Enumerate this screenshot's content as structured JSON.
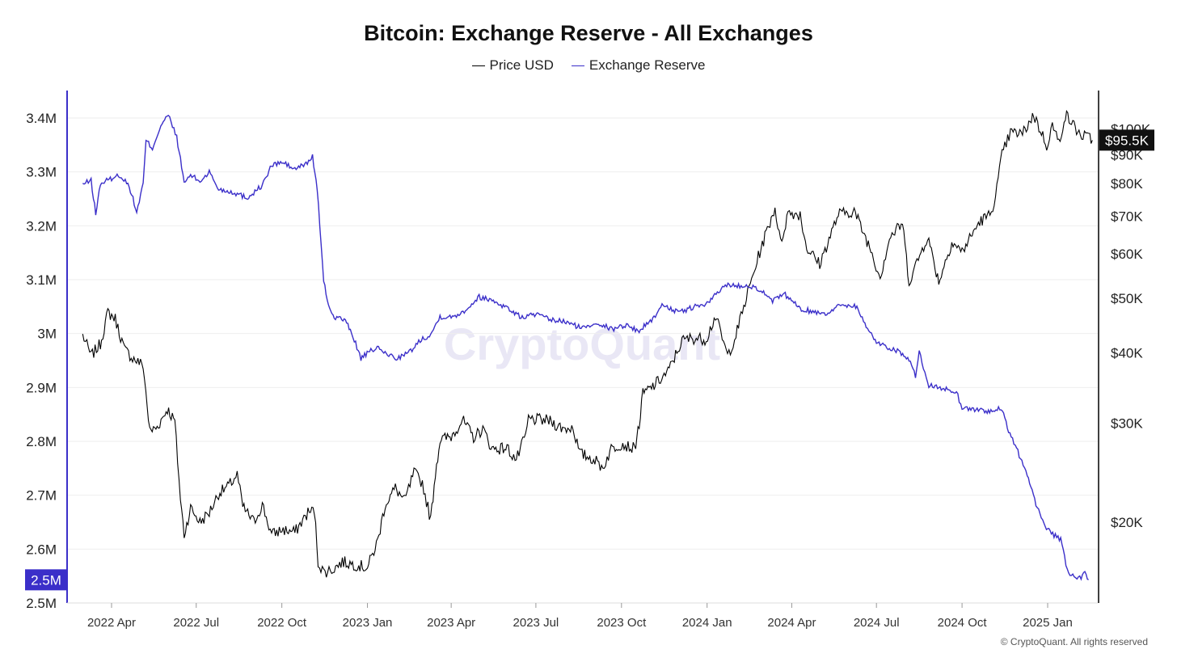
{
  "chart_data": {
    "type": "line",
    "title": "Bitcoin: Exchange Reserve - All Exchanges",
    "series": [
      {
        "name": "Price USD",
        "color": "#000000",
        "axis": "right",
        "points": [
          [
            "2022-03-01",
            43000
          ],
          [
            "2022-03-10",
            39500
          ],
          [
            "2022-03-20",
            41500
          ],
          [
            "2022-03-28",
            47200
          ],
          [
            "2022-04-05",
            46000
          ],
          [
            "2022-04-15",
            40500
          ],
          [
            "2022-04-25",
            39000
          ],
          [
            "2022-05-05",
            38000
          ],
          [
            "2022-05-12",
            29000
          ],
          [
            "2022-05-20",
            29500
          ],
          [
            "2022-05-31",
            31800
          ],
          [
            "2022-06-08",
            30200
          ],
          [
            "2022-06-14",
            22000
          ],
          [
            "2022-06-18",
            19000
          ],
          [
            "2022-06-25",
            21200
          ],
          [
            "2022-07-05",
            20000
          ],
          [
            "2022-07-15",
            20800
          ],
          [
            "2022-07-25",
            22500
          ],
          [
            "2022-08-05",
            23200
          ],
          [
            "2022-08-14",
            24300
          ],
          [
            "2022-08-20",
            21300
          ],
          [
            "2022-09-01",
            20000
          ],
          [
            "2022-09-10",
            21500
          ],
          [
            "2022-09-20",
            19000
          ],
          [
            "2022-10-01",
            19400
          ],
          [
            "2022-10-15",
            19200
          ],
          [
            "2022-10-29",
            20800
          ],
          [
            "2022-11-05",
            21000
          ],
          [
            "2022-11-09",
            17000
          ],
          [
            "2022-11-15",
            16300
          ],
          [
            "2022-11-25",
            16500
          ],
          [
            "2022-12-05",
            17000
          ],
          [
            "2022-12-20",
            16800
          ],
          [
            "2023-01-01",
            16600
          ],
          [
            "2023-01-12",
            18500
          ],
          [
            "2023-01-20",
            21500
          ],
          [
            "2023-01-31",
            23000
          ],
          [
            "2023-02-10",
            21800
          ],
          [
            "2023-02-20",
            24500
          ],
          [
            "2023-03-01",
            23500
          ],
          [
            "2023-03-10",
            20200
          ],
          [
            "2023-03-15",
            24500
          ],
          [
            "2023-03-20",
            28000
          ],
          [
            "2023-04-01",
            28400
          ],
          [
            "2023-04-13",
            30400
          ],
          [
            "2023-04-25",
            28300
          ],
          [
            "2023-05-05",
            29300
          ],
          [
            "2023-05-15",
            27000
          ],
          [
            "2023-05-31",
            27100
          ],
          [
            "2023-06-10",
            25800
          ],
          [
            "2023-06-20",
            28500
          ],
          [
            "2023-06-23",
            30500
          ],
          [
            "2023-07-05",
            30400
          ],
          [
            "2023-07-15",
            30300
          ],
          [
            "2023-07-31",
            29300
          ],
          [
            "2023-08-10",
            29500
          ],
          [
            "2023-08-17",
            26500
          ],
          [
            "2023-09-01",
            25900
          ],
          [
            "2023-09-11",
            25000
          ],
          [
            "2023-09-20",
            27000
          ],
          [
            "2023-10-01",
            27600
          ],
          [
            "2023-10-15",
            27000
          ],
          [
            "2023-10-20",
            29800
          ],
          [
            "2023-10-24",
            33800
          ],
          [
            "2023-11-05",
            35000
          ],
          [
            "2023-11-20",
            37000
          ],
          [
            "2023-12-05",
            42000
          ],
          [
            "2023-12-15",
            42500
          ],
          [
            "2023-12-31",
            42300
          ],
          [
            "2024-01-10",
            46500
          ],
          [
            "2024-01-23",
            39500
          ],
          [
            "2024-02-01",
            43000
          ],
          [
            "2024-02-15",
            52000
          ],
          [
            "2024-02-28",
            61500
          ],
          [
            "2024-03-14",
            72500
          ],
          [
            "2024-03-20",
            62500
          ],
          [
            "2024-03-28",
            71000
          ],
          [
            "2024-04-10",
            70500
          ],
          [
            "2024-04-17",
            61500
          ],
          [
            "2024-05-01",
            57500
          ],
          [
            "2024-05-21",
            70500
          ],
          [
            "2024-06-07",
            71500
          ],
          [
            "2024-06-25",
            61000
          ],
          [
            "2024-07-05",
            54500
          ],
          [
            "2024-07-15",
            64000
          ],
          [
            "2024-07-29",
            68000
          ],
          [
            "2024-08-05",
            53500
          ],
          [
            "2024-08-25",
            64500
          ],
          [
            "2024-09-06",
            53500
          ],
          [
            "2024-09-20",
            63000
          ],
          [
            "2024-10-01",
            60500
          ],
          [
            "2024-10-20",
            68500
          ],
          [
            "2024-10-31",
            70300
          ],
          [
            "2024-11-06",
            76000
          ],
          [
            "2024-11-13",
            90000
          ],
          [
            "2024-11-22",
            98500
          ],
          [
            "2024-12-05",
            98000
          ],
          [
            "2024-12-17",
            106000
          ],
          [
            "2024-12-31",
            93500
          ],
          [
            "2025-01-06",
            101500
          ],
          [
            "2025-01-13",
            94500
          ],
          [
            "2025-01-20",
            106000
          ],
          [
            "2025-01-28",
            102000
          ],
          [
            "2025-02-05",
            97500
          ],
          [
            "2025-02-14",
            96500
          ],
          [
            "2025-02-18",
            95500
          ]
        ]
      },
      {
        "name": "Exchange Reserve",
        "color": "#3b2fc9",
        "axis": "left",
        "points": [
          [
            "2022-03-01",
            3277000
          ],
          [
            "2022-03-10",
            3284000
          ],
          [
            "2022-03-15",
            3222000
          ],
          [
            "2022-03-20",
            3278000
          ],
          [
            "2022-04-01",
            3288000
          ],
          [
            "2022-04-10",
            3294000
          ],
          [
            "2022-04-20",
            3274000
          ],
          [
            "2022-04-28",
            3225000
          ],
          [
            "2022-05-05",
            3278000
          ],
          [
            "2022-05-08",
            3358000
          ],
          [
            "2022-05-15",
            3344000
          ],
          [
            "2022-05-24",
            3387000
          ],
          [
            "2022-06-01",
            3405000
          ],
          [
            "2022-06-10",
            3365000
          ],
          [
            "2022-06-18",
            3280000
          ],
          [
            "2022-06-25",
            3294000
          ],
          [
            "2022-07-05",
            3282000
          ],
          [
            "2022-07-15",
            3300000
          ],
          [
            "2022-07-25",
            3268000
          ],
          [
            "2022-08-10",
            3262000
          ],
          [
            "2022-08-25",
            3252000
          ],
          [
            "2022-09-10",
            3275000
          ],
          [
            "2022-09-20",
            3312000
          ],
          [
            "2022-10-01",
            3318000
          ],
          [
            "2022-10-15",
            3305000
          ],
          [
            "2022-10-27",
            3315000
          ],
          [
            "2022-11-03",
            3328000
          ],
          [
            "2022-11-08",
            3270000
          ],
          [
            "2022-11-15",
            3095000
          ],
          [
            "2022-11-20",
            3055000
          ],
          [
            "2022-11-25",
            3032000
          ],
          [
            "2022-12-07",
            3026000
          ],
          [
            "2022-12-15",
            3002000
          ],
          [
            "2022-12-25",
            2954000
          ],
          [
            "2023-01-10",
            2974000
          ],
          [
            "2023-01-20",
            2964000
          ],
          [
            "2023-02-01",
            2954000
          ],
          [
            "2023-02-15",
            2965000
          ],
          [
            "2023-02-28",
            2990000
          ],
          [
            "2023-03-10",
            2998000
          ],
          [
            "2023-03-20",
            3032000
          ],
          [
            "2023-04-01",
            3030000
          ],
          [
            "2023-04-15",
            3042000
          ],
          [
            "2023-05-01",
            3068000
          ],
          [
            "2023-05-15",
            3062000
          ],
          [
            "2023-05-31",
            3048000
          ],
          [
            "2023-06-15",
            3030000
          ],
          [
            "2023-07-01",
            3036000
          ],
          [
            "2023-07-15",
            3026000
          ],
          [
            "2023-08-01",
            3022000
          ],
          [
            "2023-08-20",
            3010000
          ],
          [
            "2023-09-05",
            3021000
          ],
          [
            "2023-09-20",
            3008000
          ],
          [
            "2023-10-05",
            3016000
          ],
          [
            "2023-10-20",
            3005000
          ],
          [
            "2023-11-05",
            3030000
          ],
          [
            "2023-11-15",
            3055000
          ],
          [
            "2023-12-01",
            3038000
          ],
          [
            "2023-12-15",
            3048000
          ],
          [
            "2024-01-01",
            3055000
          ],
          [
            "2024-01-12",
            3075000
          ],
          [
            "2024-01-22",
            3092000
          ],
          [
            "2024-02-01",
            3088000
          ],
          [
            "2024-02-15",
            3090000
          ],
          [
            "2024-02-28",
            3080000
          ],
          [
            "2024-03-10",
            3060000
          ],
          [
            "2024-03-25",
            3072000
          ],
          [
            "2024-04-10",
            3046000
          ],
          [
            "2024-04-25",
            3040000
          ],
          [
            "2024-05-10",
            3038000
          ],
          [
            "2024-05-25",
            3055000
          ],
          [
            "2024-06-10",
            3050000
          ],
          [
            "2024-06-20",
            3012000
          ],
          [
            "2024-07-01",
            2985000
          ],
          [
            "2024-07-12",
            2975000
          ],
          [
            "2024-07-25",
            2968000
          ],
          [
            "2024-08-05",
            2950000
          ],
          [
            "2024-08-12",
            2920000
          ],
          [
            "2024-08-16",
            2970000
          ],
          [
            "2024-08-25",
            2905000
          ],
          [
            "2024-09-10",
            2898000
          ],
          [
            "2024-09-25",
            2892000
          ],
          [
            "2024-10-01",
            2862000
          ],
          [
            "2024-10-20",
            2858000
          ],
          [
            "2024-11-05",
            2855000
          ],
          [
            "2024-11-12",
            2862000
          ],
          [
            "2024-11-20",
            2820000
          ],
          [
            "2024-11-30",
            2780000
          ],
          [
            "2024-12-10",
            2740000
          ],
          [
            "2024-12-18",
            2690000
          ],
          [
            "2024-12-28",
            2648000
          ],
          [
            "2025-01-05",
            2628000
          ],
          [
            "2025-01-15",
            2618000
          ],
          [
            "2025-01-22",
            2560000
          ],
          [
            "2025-01-31",
            2548000
          ],
          [
            "2025-02-06",
            2545000
          ],
          [
            "2025-02-10",
            2555000
          ],
          [
            "2025-02-14",
            2543000
          ]
        ]
      }
    ],
    "left_axis": {
      "min": 2500000,
      "max": 3400000,
      "ticks": [
        "2.5M",
        "2.6M",
        "2.7M",
        "2.8M",
        "2.9M",
        "3M",
        "3.1M",
        "3.2M",
        "3.3M",
        "3.4M"
      ]
    },
    "right_axis": {
      "scale": "log",
      "ticks": [
        [
          "$20K",
          20000
        ],
        [
          "$30K",
          30000
        ],
        [
          "$40K",
          40000
        ],
        [
          "$50K",
          50000
        ],
        [
          "$60K",
          60000
        ],
        [
          "$70K",
          70000
        ],
        [
          "$80K",
          80000
        ],
        [
          "$90K",
          90000
        ],
        [
          "$100K",
          100000
        ]
      ]
    },
    "x_axis": {
      "ticks": [
        [
          "2022 Apr",
          "2022-04-01"
        ],
        [
          "2022 Jul",
          "2022-07-01"
        ],
        [
          "2022 Oct",
          "2022-10-01"
        ],
        [
          "2023 Jan",
          "2023-01-01"
        ],
        [
          "2023 Apr",
          "2023-04-01"
        ],
        [
          "2023 Jul",
          "2023-07-01"
        ],
        [
          "2023 Oct",
          "2023-10-01"
        ],
        [
          "2024 Jan",
          "2024-01-01"
        ],
        [
          "2024 Apr",
          "2024-04-01"
        ],
        [
          "2024 Jul",
          "2024-07-01"
        ],
        [
          "2024 Oct",
          "2024-10-01"
        ],
        [
          "2025 Jan",
          "2025-01-01"
        ]
      ]
    },
    "last_value_labels": {
      "left": "2.5M",
      "right": "$95.5K"
    },
    "grid": true,
    "legend_position": "top-center",
    "watermark": "CryptoQuant"
  },
  "footer": {
    "copyright": "© CryptoQuant. All rights reserved"
  }
}
